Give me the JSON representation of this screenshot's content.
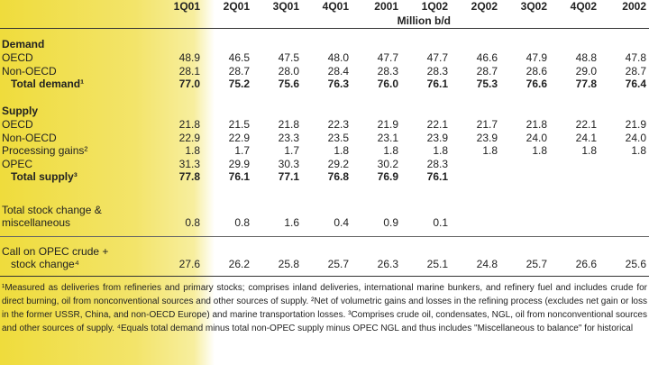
{
  "header": {
    "columns": [
      "1Q01",
      "2Q01",
      "3Q01",
      "4Q01",
      "2001",
      "1Q02",
      "2Q02",
      "3Q02",
      "4Q02",
      "2002"
    ],
    "unit": "Million b/d"
  },
  "sections": [
    {
      "title": "Demand",
      "rows": [
        {
          "label": "OECD",
          "values": [
            "48.9",
            "46.5",
            "47.5",
            "48.0",
            "47.7",
            "47.7",
            "46.6",
            "47.9",
            "48.8",
            "47.8"
          ]
        },
        {
          "label": "Non-OECD",
          "values": [
            "28.1",
            "28.7",
            "28.0",
            "28.4",
            "28.3",
            "28.3",
            "28.7",
            "28.6",
            "29.0",
            "28.7"
          ]
        }
      ],
      "total": {
        "label": "Total demand¹",
        "values": [
          "77.0",
          "75.2",
          "75.6",
          "76.3",
          "76.0",
          "76.1",
          "75.3",
          "76.6",
          "77.8",
          "76.4"
        ]
      }
    },
    {
      "title": "Supply",
      "rows": [
        {
          "label": "OECD",
          "values": [
            "21.8",
            "21.5",
            "21.8",
            "22.3",
            "21.9",
            "22.1",
            "21.7",
            "21.8",
            "22.1",
            "21.9"
          ]
        },
        {
          "label": "Non-OECD",
          "values": [
            "22.9",
            "22.9",
            "23.3",
            "23.5",
            "23.1",
            "23.9",
            "23.9",
            "24.0",
            "24.1",
            "24.0"
          ]
        },
        {
          "label": "Processing gains²",
          "values": [
            "1.8",
            "1.7",
            "1.7",
            "1.8",
            "1.8",
            "1.8",
            "1.8",
            "1.8",
            "1.8",
            "1.8"
          ]
        },
        {
          "label": "OPEC",
          "values": [
            "31.3",
            "29.9",
            "30.3",
            "29.2",
            "30.2",
            "28.3"
          ]
        }
      ],
      "total": {
        "label": "Total supply³",
        "values": [
          "77.8",
          "76.1",
          "77.1",
          "76.8",
          "76.9",
          "76.1"
        ]
      }
    }
  ],
  "other_rows": [
    {
      "label": [
        "Total stock change &",
        "miscellaneous"
      ],
      "values": [
        "0.8",
        "0.8",
        "1.6",
        "0.4",
        "0.9",
        "0.1"
      ]
    },
    {
      "label": [
        "Call on OPEC crude +",
        "stock change⁴"
      ],
      "values": [
        "27.6",
        "26.2",
        "25.8",
        "25.7",
        "26.3",
        "25.1",
        "24.8",
        "25.7",
        "26.6",
        "25.6"
      ]
    }
  ],
  "footnotes": "¹Measured as deliveries from refineries and primary stocks; comprises inland deliveries, international marine bunkers, and refinery fuel and includes crude for direct burning, oil from nonconventional sources and other sources of supply. ²Net of volumetric gains and losses in the refining process (excludes net gain or loss in the former USSR, China, and non-OECD Europe) and marine transportation losses. ³Comprises crude oil, condensates, NGL, oil from nonconventional sources and other sources of supply. ⁴Equals total demand minus total non-OPEC supply minus OPEC NGL and thus includes \"Miscellaneous to balance\" for historical"
}
